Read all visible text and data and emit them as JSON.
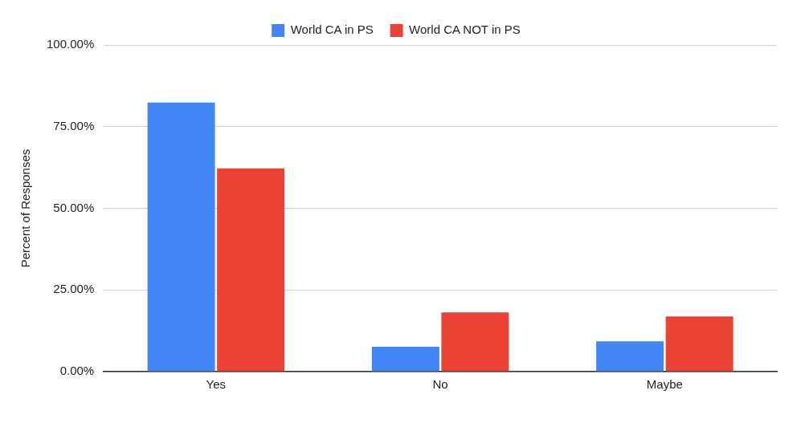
{
  "chart_data": {
    "type": "bar",
    "ylabel": "Percent of Responses",
    "categories": [
      "Yes",
      "No",
      "Maybe"
    ],
    "series": [
      {
        "name": "World CA in PS",
        "color": "#4285f4",
        "values": [
          82.4,
          7.6,
          9.3
        ]
      },
      {
        "name": "World CA NOT in PS",
        "color": "#ea4335",
        "values": [
          62.2,
          18.1,
          16.9
        ]
      }
    ],
    "ylim": [
      0,
      100
    ],
    "yticks": [
      {
        "value": 0,
        "label": "0.00%"
      },
      {
        "value": 25,
        "label": "25.00%"
      },
      {
        "value": 50,
        "label": "50.00%"
      },
      {
        "value": 75,
        "label": "75.00%"
      },
      {
        "value": 100,
        "label": "100.00%"
      }
    ],
    "grid": "y",
    "legend": "top"
  }
}
